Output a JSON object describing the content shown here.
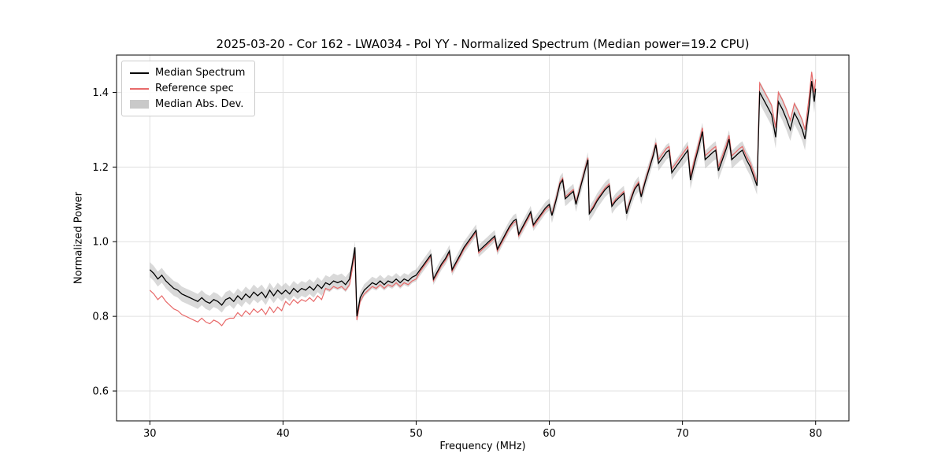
{
  "chart_data": {
    "type": "line",
    "title": "2025-03-20 - Cor 162 - LWA034 - Pol YY - Normalized Spectrum (Median power=19.2 CPU)",
    "xlabel": "Frequency (MHz)",
    "ylabel": "Normalized Power",
    "xlim": [
      27.5,
      82.5
    ],
    "ylim": [
      0.52,
      1.5
    ],
    "xticks": [
      30,
      40,
      50,
      60,
      70,
      80
    ],
    "yticks": [
      0.6,
      0.8,
      1.0,
      1.2,
      1.4
    ],
    "grid": true,
    "legend_position": "upper left",
    "colors": {
      "median": "#000000",
      "reference": "#e86a6a",
      "band": "#aaaaaa",
      "band_opacity": 0.45,
      "grid": "#e0e0e0",
      "spine": "#000000"
    },
    "series_names": [
      "Median Spectrum",
      "Reference spec",
      "Median Abs. Dev."
    ],
    "points_format": [
      "freq_mhz",
      "median",
      "reference",
      "mad"
    ],
    "points": [
      [
        30.0,
        0.925,
        0.87,
        0.02
      ],
      [
        30.3,
        0.915,
        0.86,
        0.02
      ],
      [
        30.6,
        0.9,
        0.845,
        0.02
      ],
      [
        30.9,
        0.91,
        0.855,
        0.02
      ],
      [
        31.2,
        0.895,
        0.84,
        0.02
      ],
      [
        31.5,
        0.885,
        0.83,
        0.02
      ],
      [
        31.8,
        0.875,
        0.82,
        0.02
      ],
      [
        32.1,
        0.87,
        0.815,
        0.02
      ],
      [
        32.4,
        0.86,
        0.805,
        0.02
      ],
      [
        32.7,
        0.855,
        0.8,
        0.02
      ],
      [
        33.0,
        0.85,
        0.795,
        0.02
      ],
      [
        33.3,
        0.845,
        0.79,
        0.02
      ],
      [
        33.6,
        0.84,
        0.785,
        0.02
      ],
      [
        33.9,
        0.85,
        0.795,
        0.02
      ],
      [
        34.2,
        0.84,
        0.785,
        0.02
      ],
      [
        34.5,
        0.835,
        0.78,
        0.02
      ],
      [
        34.8,
        0.845,
        0.79,
        0.02
      ],
      [
        35.1,
        0.84,
        0.785,
        0.02
      ],
      [
        35.4,
        0.83,
        0.775,
        0.02
      ],
      [
        35.7,
        0.845,
        0.79,
        0.02
      ],
      [
        36.0,
        0.85,
        0.795,
        0.02
      ],
      [
        36.3,
        0.84,
        0.795,
        0.02
      ],
      [
        36.6,
        0.855,
        0.81,
        0.02
      ],
      [
        36.9,
        0.845,
        0.8,
        0.02
      ],
      [
        37.2,
        0.86,
        0.815,
        0.02
      ],
      [
        37.5,
        0.85,
        0.805,
        0.02
      ],
      [
        37.8,
        0.865,
        0.82,
        0.02
      ],
      [
        38.1,
        0.855,
        0.81,
        0.02
      ],
      [
        38.4,
        0.865,
        0.82,
        0.02
      ],
      [
        38.7,
        0.85,
        0.805,
        0.02
      ],
      [
        39.0,
        0.87,
        0.825,
        0.02
      ],
      [
        39.3,
        0.855,
        0.81,
        0.02
      ],
      [
        39.6,
        0.87,
        0.825,
        0.02
      ],
      [
        39.9,
        0.86,
        0.815,
        0.02
      ],
      [
        40.2,
        0.87,
        0.84,
        0.02
      ],
      [
        40.5,
        0.86,
        0.83,
        0.02
      ],
      [
        40.8,
        0.875,
        0.845,
        0.02
      ],
      [
        41.1,
        0.865,
        0.835,
        0.02
      ],
      [
        41.4,
        0.875,
        0.845,
        0.02
      ],
      [
        41.7,
        0.87,
        0.84,
        0.02
      ],
      [
        42.0,
        0.88,
        0.85,
        0.02
      ],
      [
        42.3,
        0.87,
        0.84,
        0.02
      ],
      [
        42.6,
        0.885,
        0.855,
        0.02
      ],
      [
        42.9,
        0.875,
        0.845,
        0.02
      ],
      [
        43.2,
        0.89,
        0.875,
        0.02
      ],
      [
        43.5,
        0.885,
        0.87,
        0.02
      ],
      [
        43.8,
        0.895,
        0.88,
        0.02
      ],
      [
        44.1,
        0.89,
        0.875,
        0.02
      ],
      [
        44.4,
        0.895,
        0.88,
        0.02
      ],
      [
        44.7,
        0.885,
        0.87,
        0.02
      ],
      [
        45.0,
        0.9,
        0.885,
        0.02
      ],
      [
        45.2,
        0.94,
        0.925,
        0.018
      ],
      [
        45.4,
        0.985,
        0.97,
        0.016
      ],
      [
        45.55,
        0.8,
        0.79,
        0.016
      ],
      [
        45.8,
        0.85,
        0.84,
        0.016
      ],
      [
        46.1,
        0.87,
        0.86,
        0.016
      ],
      [
        46.4,
        0.88,
        0.87,
        0.016
      ],
      [
        46.7,
        0.89,
        0.88,
        0.016
      ],
      [
        47.0,
        0.885,
        0.875,
        0.016
      ],
      [
        47.3,
        0.895,
        0.885,
        0.016
      ],
      [
        47.6,
        0.885,
        0.875,
        0.016
      ],
      [
        47.9,
        0.895,
        0.885,
        0.016
      ],
      [
        48.2,
        0.89,
        0.88,
        0.016
      ],
      [
        48.5,
        0.9,
        0.89,
        0.016
      ],
      [
        48.8,
        0.89,
        0.88,
        0.016
      ],
      [
        49.1,
        0.9,
        0.89,
        0.016
      ],
      [
        49.4,
        0.895,
        0.885,
        0.016
      ],
      [
        49.7,
        0.905,
        0.895,
        0.016
      ],
      [
        50.0,
        0.91,
        0.9,
        0.016
      ],
      [
        50.3,
        0.925,
        0.92,
        0.016
      ],
      [
        50.6,
        0.94,
        0.935,
        0.016
      ],
      [
        50.9,
        0.955,
        0.95,
        0.016
      ],
      [
        51.1,
        0.965,
        0.96,
        0.016
      ],
      [
        51.3,
        0.9,
        0.895,
        0.016
      ],
      [
        51.6,
        0.92,
        0.915,
        0.016
      ],
      [
        51.9,
        0.94,
        0.935,
        0.016
      ],
      [
        52.2,
        0.955,
        0.95,
        0.016
      ],
      [
        52.5,
        0.975,
        0.97,
        0.016
      ],
      [
        52.7,
        0.925,
        0.92,
        0.016
      ],
      [
        53.0,
        0.945,
        0.94,
        0.016
      ],
      [
        53.3,
        0.965,
        0.96,
        0.016
      ],
      [
        53.6,
        0.985,
        0.98,
        0.016
      ],
      [
        53.9,
        1.0,
        0.995,
        0.016
      ],
      [
        54.2,
        1.015,
        1.01,
        0.016
      ],
      [
        54.5,
        1.03,
        1.025,
        0.016
      ],
      [
        54.7,
        0.975,
        0.97,
        0.016
      ],
      [
        55.0,
        0.985,
        0.98,
        0.016
      ],
      [
        55.3,
        0.995,
        0.99,
        0.016
      ],
      [
        55.6,
        1.005,
        1.0,
        0.016
      ],
      [
        55.9,
        1.015,
        1.01,
        0.016
      ],
      [
        56.1,
        0.98,
        0.975,
        0.016
      ],
      [
        56.4,
        1.0,
        0.995,
        0.016
      ],
      [
        56.7,
        1.02,
        1.015,
        0.016
      ],
      [
        57.0,
        1.04,
        1.035,
        0.016
      ],
      [
        57.3,
        1.055,
        1.05,
        0.016
      ],
      [
        57.5,
        1.06,
        1.055,
        0.016
      ],
      [
        57.7,
        1.02,
        1.015,
        0.016
      ],
      [
        58.0,
        1.04,
        1.035,
        0.016
      ],
      [
        58.3,
        1.06,
        1.055,
        0.016
      ],
      [
        58.6,
        1.08,
        1.075,
        0.016
      ],
      [
        58.8,
        1.045,
        1.04,
        0.016
      ],
      [
        59.1,
        1.06,
        1.055,
        0.016
      ],
      [
        59.4,
        1.075,
        1.07,
        0.016
      ],
      [
        59.7,
        1.09,
        1.085,
        0.016
      ],
      [
        60.0,
        1.1,
        1.095,
        0.016
      ],
      [
        60.2,
        1.07,
        1.075,
        0.02
      ],
      [
        60.5,
        1.11,
        1.115,
        0.02
      ],
      [
        60.8,
        1.155,
        1.16,
        0.02
      ],
      [
        61.0,
        1.165,
        1.17,
        0.02
      ],
      [
        61.2,
        1.115,
        1.12,
        0.02
      ],
      [
        61.5,
        1.125,
        1.13,
        0.02
      ],
      [
        61.8,
        1.135,
        1.14,
        0.02
      ],
      [
        62.0,
        1.1,
        1.105,
        0.02
      ],
      [
        62.3,
        1.14,
        1.145,
        0.02
      ],
      [
        62.6,
        1.18,
        1.185,
        0.02
      ],
      [
        62.9,
        1.22,
        1.225,
        0.02
      ],
      [
        63.0,
        1.075,
        1.08,
        0.02
      ],
      [
        63.3,
        1.09,
        1.095,
        0.02
      ],
      [
        63.6,
        1.11,
        1.115,
        0.02
      ],
      [
        63.9,
        1.125,
        1.13,
        0.02
      ],
      [
        64.2,
        1.14,
        1.145,
        0.02
      ],
      [
        64.5,
        1.15,
        1.155,
        0.02
      ],
      [
        64.7,
        1.095,
        1.1,
        0.02
      ],
      [
        65.0,
        1.11,
        1.115,
        0.02
      ],
      [
        65.3,
        1.12,
        1.125,
        0.02
      ],
      [
        65.6,
        1.13,
        1.135,
        0.02
      ],
      [
        65.8,
        1.075,
        1.08,
        0.02
      ],
      [
        66.1,
        1.11,
        1.115,
        0.02
      ],
      [
        66.4,
        1.14,
        1.145,
        0.02
      ],
      [
        66.7,
        1.155,
        1.16,
        0.02
      ],
      [
        66.9,
        1.12,
        1.125,
        0.02
      ],
      [
        67.2,
        1.16,
        1.165,
        0.02
      ],
      [
        67.5,
        1.195,
        1.2,
        0.02
      ],
      [
        67.8,
        1.23,
        1.235,
        0.02
      ],
      [
        68.0,
        1.26,
        1.265,
        0.02
      ],
      [
        68.2,
        1.21,
        1.22,
        0.02
      ],
      [
        68.5,
        1.225,
        1.235,
        0.02
      ],
      [
        68.8,
        1.24,
        1.25,
        0.02
      ],
      [
        69.0,
        1.245,
        1.255,
        0.02
      ],
      [
        69.2,
        1.185,
        1.195,
        0.02
      ],
      [
        69.5,
        1.2,
        1.21,
        0.02
      ],
      [
        69.8,
        1.215,
        1.225,
        0.02
      ],
      [
        70.1,
        1.23,
        1.24,
        0.024
      ],
      [
        70.4,
        1.245,
        1.255,
        0.024
      ],
      [
        70.6,
        1.165,
        1.175,
        0.024
      ],
      [
        70.9,
        1.21,
        1.22,
        0.024
      ],
      [
        71.2,
        1.25,
        1.26,
        0.024
      ],
      [
        71.5,
        1.295,
        1.305,
        0.024
      ],
      [
        71.7,
        1.22,
        1.23,
        0.024
      ],
      [
        72.0,
        1.23,
        1.24,
        0.024
      ],
      [
        72.3,
        1.24,
        1.25,
        0.024
      ],
      [
        72.5,
        1.245,
        1.255,
        0.024
      ],
      [
        72.7,
        1.19,
        1.2,
        0.024
      ],
      [
        73.0,
        1.22,
        1.23,
        0.024
      ],
      [
        73.3,
        1.25,
        1.26,
        0.024
      ],
      [
        73.5,
        1.275,
        1.285,
        0.024
      ],
      [
        73.7,
        1.22,
        1.23,
        0.024
      ],
      [
        74.0,
        1.23,
        1.24,
        0.024
      ],
      [
        74.3,
        1.24,
        1.25,
        0.024
      ],
      [
        74.5,
        1.245,
        1.255,
        0.024
      ],
      [
        74.8,
        1.22,
        1.23,
        0.024
      ],
      [
        75.1,
        1.2,
        1.21,
        0.024
      ],
      [
        75.4,
        1.17,
        1.18,
        0.024
      ],
      [
        75.6,
        1.15,
        1.16,
        0.024
      ],
      [
        75.8,
        1.4,
        1.425,
        0.03
      ],
      [
        76.1,
        1.38,
        1.405,
        0.03
      ],
      [
        76.4,
        1.36,
        1.385,
        0.03
      ],
      [
        76.7,
        1.34,
        1.365,
        0.03
      ],
      [
        77.0,
        1.28,
        1.305,
        0.03
      ],
      [
        77.2,
        1.375,
        1.4,
        0.03
      ],
      [
        77.5,
        1.355,
        1.38,
        0.03
      ],
      [
        77.8,
        1.33,
        1.355,
        0.03
      ],
      [
        78.1,
        1.3,
        1.325,
        0.03
      ],
      [
        78.4,
        1.345,
        1.37,
        0.03
      ],
      [
        78.7,
        1.325,
        1.35,
        0.03
      ],
      [
        79.0,
        1.3,
        1.325,
        0.03
      ],
      [
        79.2,
        1.275,
        1.3,
        0.03
      ],
      [
        79.5,
        1.36,
        1.385,
        0.03
      ],
      [
        79.7,
        1.43,
        1.455,
        0.03
      ],
      [
        79.9,
        1.375,
        1.4,
        0.03
      ],
      [
        80.0,
        1.41,
        1.435,
        0.03
      ]
    ]
  },
  "legend": {
    "items": [
      {
        "label": "Median Spectrum",
        "swatch": "line",
        "color": "#000000"
      },
      {
        "label": "Reference spec",
        "swatch": "line",
        "color": "#e86a6a"
      },
      {
        "label": "Median Abs. Dev.",
        "swatch": "patch",
        "color": "#c9c9c9"
      }
    ]
  }
}
